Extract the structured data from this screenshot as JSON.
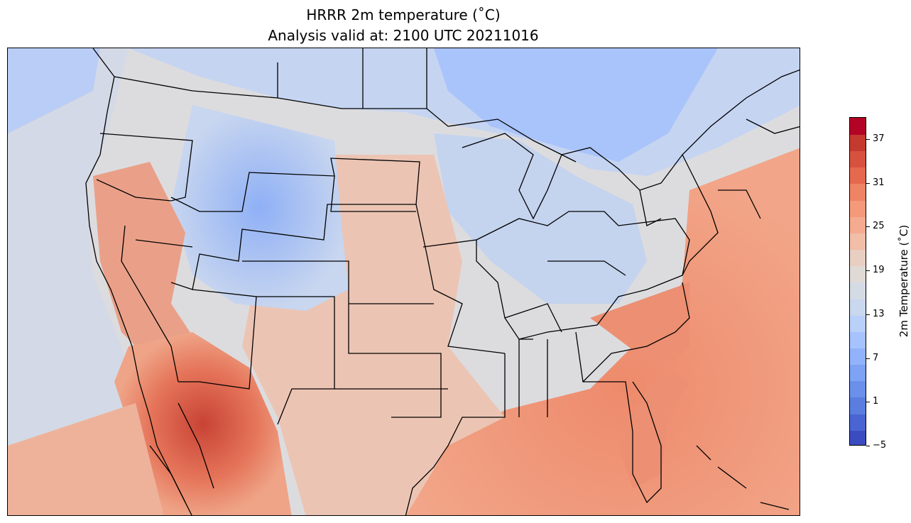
{
  "title_line1": "HRRR 2m temperature ($^\\circ$C)",
  "title_line1_display": "HRRR 2m temperature (˚C)",
  "title_line2": "Analysis valid at: 2100 UTC 20211016",
  "colorbar": {
    "label": "2m Temperature (˚C)",
    "min": -5,
    "max": 40,
    "step": 2,
    "tick_values": [
      -5,
      1,
      7,
      13,
      19,
      25,
      31,
      37
    ],
    "tick_labels": [
      "−5",
      "1",
      "7",
      "13",
      "19",
      "25",
      "31",
      "37"
    ],
    "colors": [
      "#3b4cc0",
      "#4a64d2",
      "#5a7ddf",
      "#6b90ea",
      "#7ea2f4",
      "#92b3fb",
      "#a6c3fe",
      "#b9d0f9",
      "#c9d7ef",
      "#d5dbe5",
      "#dfdad6",
      "#e9cfc1",
      "#f1bea8",
      "#f4ab90",
      "#f49a7b",
      "#ef8365",
      "#e5694f",
      "#d6523e",
      "#c43a2f",
      "#b40426"
    ]
  },
  "colormap": "coolwarm"
}
